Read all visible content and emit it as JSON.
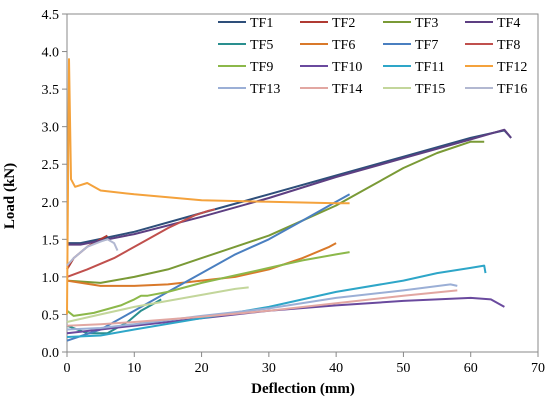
{
  "chart_data": {
    "type": "line",
    "title": "",
    "xlabel": "Deflection (mm)",
    "ylabel": "Load (kN)",
    "xlim": [
      0,
      70
    ],
    "ylim": [
      0,
      4.5
    ],
    "xticks": [
      "0",
      "10",
      "20",
      "30",
      "40",
      "50",
      "60",
      "70"
    ],
    "yticks": [
      "0.0",
      "0.5",
      "1.0",
      "1.5",
      "2.0",
      "2.5",
      "3.0",
      "3.5",
      "4.0",
      "4.5"
    ],
    "grid": false,
    "legend_position": "top-right",
    "series": [
      {
        "name": "TF1",
        "color": "#2e4f7a",
        "x": [
          0,
          2,
          10,
          20,
          30,
          40,
          50,
          60,
          65,
          66
        ],
        "y": [
          1.45,
          1.45,
          1.6,
          1.85,
          2.1,
          2.35,
          2.6,
          2.85,
          2.95,
          2.85
        ]
      },
      {
        "name": "TF2",
        "color": "#b03a32",
        "x": [
          0,
          1,
          3,
          5,
          6
        ],
        "y": [
          1.1,
          1.25,
          1.4,
          1.5,
          1.55
        ]
      },
      {
        "name": "TF3",
        "color": "#7a9a36",
        "x": [
          0,
          5,
          10,
          15,
          20,
          25,
          30,
          35,
          40,
          45,
          50,
          55,
          60,
          62
        ],
        "y": [
          0.95,
          0.92,
          1.0,
          1.1,
          1.25,
          1.4,
          1.55,
          1.75,
          1.95,
          2.2,
          2.45,
          2.65,
          2.8,
          2.8
        ]
      },
      {
        "name": "TF4",
        "color": "#5d3f82",
        "x": [
          0,
          2,
          10,
          20,
          30,
          40,
          50,
          60,
          65,
          66
        ],
        "y": [
          1.43,
          1.43,
          1.57,
          1.8,
          2.05,
          2.33,
          2.58,
          2.83,
          2.96,
          2.85
        ]
      },
      {
        "name": "TF5",
        "color": "#2a8f8f",
        "x": [
          0,
          3,
          6,
          9,
          11,
          13,
          14
        ],
        "y": [
          0.35,
          0.25,
          0.25,
          0.4,
          0.55,
          0.65,
          0.7
        ]
      },
      {
        "name": "TF6",
        "color": "#d9792a",
        "x": [
          0,
          5,
          10,
          15,
          20,
          25,
          30,
          35,
          39,
          40
        ],
        "y": [
          0.95,
          0.88,
          0.88,
          0.9,
          0.95,
          1.0,
          1.1,
          1.25,
          1.4,
          1.45
        ]
      },
      {
        "name": "TF7",
        "color": "#4a7fc0",
        "x": [
          0,
          5,
          10,
          15,
          20,
          25,
          30,
          35,
          40,
          42
        ],
        "y": [
          0.15,
          0.3,
          0.55,
          0.8,
          1.05,
          1.3,
          1.5,
          1.75,
          2.0,
          2.1
        ]
      },
      {
        "name": "TF8",
        "color": "#c0504d",
        "x": [
          0,
          3,
          7,
          11,
          15,
          19,
          21,
          22
        ],
        "y": [
          1.0,
          1.1,
          1.25,
          1.45,
          1.65,
          1.82,
          1.88,
          1.9
        ]
      },
      {
        "name": "TF9",
        "color": "#8cb84a",
        "x": [
          0,
          1,
          4,
          8,
          10,
          11,
          12,
          15,
          20,
          25,
          30,
          35,
          40,
          42
        ],
        "y": [
          0.55,
          0.48,
          0.52,
          0.62,
          0.7,
          0.75,
          0.75,
          0.8,
          0.92,
          1.02,
          1.12,
          1.22,
          1.3,
          1.33
        ]
      },
      {
        "name": "TF10",
        "color": "#6a4a9e",
        "x": [
          0,
          5,
          10,
          20,
          30,
          40,
          50,
          55,
          60,
          63,
          65
        ],
        "y": [
          0.25,
          0.3,
          0.35,
          0.45,
          0.55,
          0.62,
          0.68,
          0.7,
          0.72,
          0.7,
          0.6
        ]
      },
      {
        "name": "TF11",
        "color": "#2ea6c8",
        "x": [
          0,
          5,
          10,
          20,
          30,
          40,
          50,
          55,
          60,
          62,
          62.2
        ],
        "y": [
          0.2,
          0.22,
          0.3,
          0.45,
          0.6,
          0.8,
          0.95,
          1.05,
          1.12,
          1.15,
          1.05
        ]
      },
      {
        "name": "TF12",
        "color": "#f4a23c",
        "x": [
          0,
          0.3,
          0.6,
          1.2,
          3,
          5,
          10,
          20,
          30,
          40,
          42
        ],
        "y": [
          0.5,
          3.9,
          2.3,
          2.2,
          2.25,
          2.15,
          2.1,
          2.02,
          2.0,
          1.98,
          1.98
        ]
      },
      {
        "name": "TF13",
        "color": "#9bafd6",
        "x": [
          0,
          5,
          10,
          20,
          30,
          40,
          50,
          57,
          58
        ],
        "y": [
          0.3,
          0.32,
          0.37,
          0.48,
          0.58,
          0.72,
          0.82,
          0.9,
          0.88
        ]
      },
      {
        "name": "TF14",
        "color": "#e2a7a2",
        "x": [
          0,
          5,
          10,
          20,
          30,
          40,
          50,
          58
        ],
        "y": [
          0.35,
          0.37,
          0.4,
          0.47,
          0.55,
          0.65,
          0.75,
          0.82
        ]
      },
      {
        "name": "TF15",
        "color": "#c3d69b",
        "x": [
          0,
          5,
          10,
          15,
          20,
          25,
          27
        ],
        "y": [
          0.4,
          0.5,
          0.6,
          0.68,
          0.76,
          0.84,
          0.86
        ]
      },
      {
        "name": "TF16",
        "color": "#b2b8d1",
        "x": [
          0,
          1,
          3,
          5,
          6,
          7,
          7.5
        ],
        "y": [
          1.15,
          1.25,
          1.4,
          1.47,
          1.5,
          1.45,
          1.35
        ]
      }
    ]
  }
}
